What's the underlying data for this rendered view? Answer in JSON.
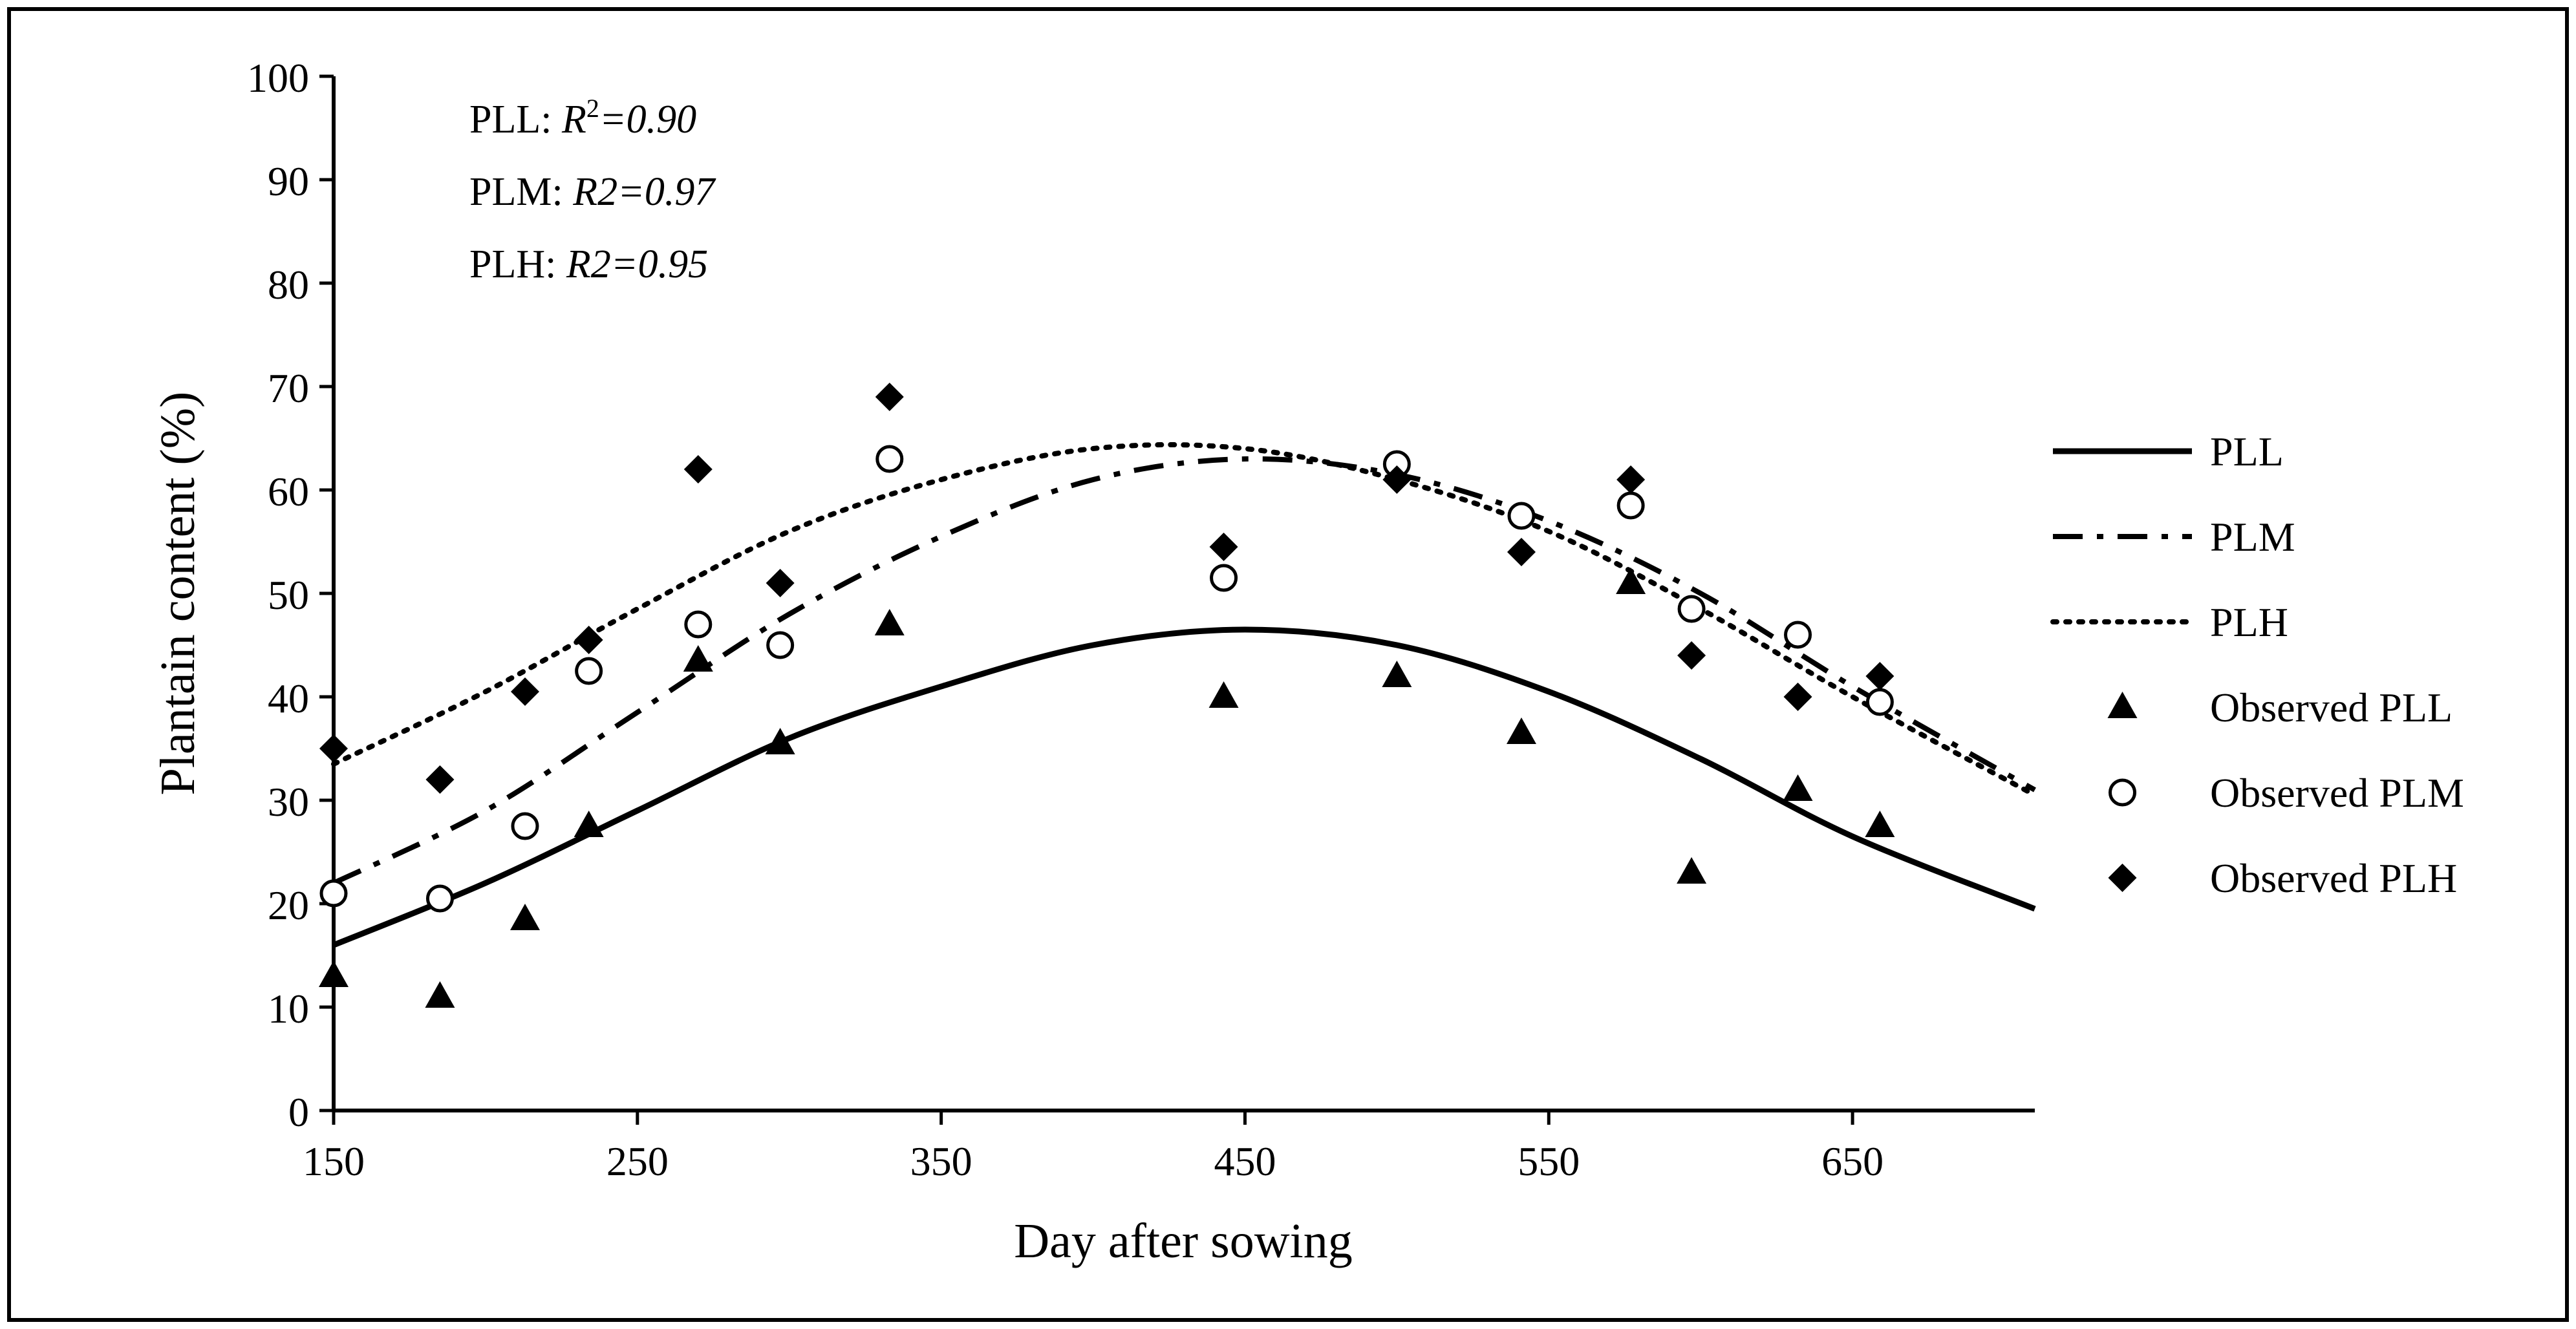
{
  "chart_data": {
    "type": "line",
    "xlabel": "Day after sowing",
    "ylabel": "Plantain content (%)",
    "xlim": [
      150,
      710
    ],
    "ylim": [
      0,
      100
    ],
    "x_ticks": [
      150,
      250,
      350,
      450,
      550,
      650
    ],
    "y_ticks": [
      0,
      10,
      20,
      30,
      40,
      50,
      60,
      70,
      80,
      90,
      100
    ],
    "legend_position": "right",
    "annotations": [
      {
        "prefix": "PLL: ",
        "r": "R",
        "sup": "2",
        "value": "=0.90"
      },
      {
        "prefix": "PLM: ",
        "r": "R2",
        "sup": "",
        "value": "=0.97"
      },
      {
        "prefix": "PLH: ",
        "r": "R2",
        "sup": "",
        "value": "=0.95"
      }
    ],
    "series": [
      {
        "name": "PLL",
        "kind": "line",
        "style": "solid",
        "color": "#000000",
        "x": [
          150,
          200,
          250,
          300,
          350,
          400,
          450,
          500,
          550,
          600,
          650,
          710
        ],
        "y": [
          16,
          22,
          29,
          36,
          41,
          45,
          46.5,
          45,
          40.5,
          34,
          26.5,
          19.5
        ]
      },
      {
        "name": "PLM",
        "kind": "line",
        "style": "dashdot",
        "color": "#000000",
        "x": [
          150,
          200,
          250,
          300,
          350,
          400,
          450,
          500,
          550,
          600,
          650,
          710
        ],
        "y": [
          22,
          29,
          38.5,
          48,
          55.5,
          61,
          63,
          61.5,
          57,
          50,
          41,
          31
        ]
      },
      {
        "name": "PLH",
        "kind": "line",
        "style": "dotted",
        "color": "#000000",
        "x": [
          150,
          200,
          250,
          300,
          350,
          400,
          450,
          500,
          550,
          600,
          650,
          710
        ],
        "y": [
          33.5,
          40.5,
          48.5,
          56,
          61,
          64,
          64,
          61,
          56,
          48.5,
          40,
          30.5
        ]
      },
      {
        "name": "Observed PLL",
        "kind": "scatter",
        "marker": "triangle",
        "color": "#000000",
        "x": [
          150,
          185,
          213,
          234,
          270,
          297,
          333,
          443,
          500,
          541,
          577,
          597,
          632,
          659
        ],
        "y": [
          13,
          11,
          18.5,
          27.5,
          43.5,
          35.5,
          47,
          40,
          42,
          36.5,
          51,
          23,
          31,
          27.5
        ]
      },
      {
        "name": "Observed PLM",
        "kind": "scatter",
        "marker": "circle-open",
        "color": "#000000",
        "x": [
          150,
          185,
          213,
          234,
          270,
          297,
          333,
          443,
          500,
          541,
          577,
          597,
          632,
          659
        ],
        "y": [
          21,
          20.5,
          27.5,
          42.5,
          47,
          45,
          63,
          51.5,
          62.5,
          57.5,
          58.5,
          48.5,
          46,
          39.5
        ]
      },
      {
        "name": "Observed PLH",
        "kind": "scatter",
        "marker": "diamond",
        "color": "#000000",
        "x": [
          150,
          185,
          213,
          234,
          270,
          297,
          333,
          443,
          500,
          541,
          577,
          597,
          632,
          659
        ],
        "y": [
          35,
          32,
          40.5,
          45.5,
          62,
          51,
          69,
          54.5,
          61,
          54,
          61,
          44,
          40,
          42
        ]
      }
    ]
  }
}
